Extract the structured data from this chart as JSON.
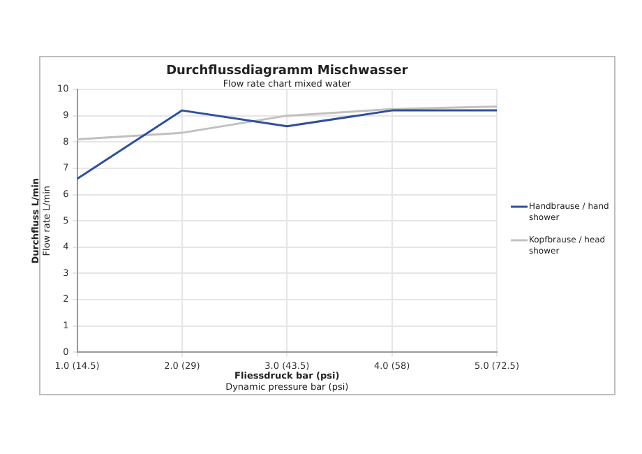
{
  "chart_data": {
    "type": "line",
    "title": "Durchflussdiagramm Mischwasser",
    "subtitle": "Flow rate chart mixed water",
    "xlabel": "Fliessdruck bar (psi)\nDynamic pressure bar (psi)",
    "ylabel": "Durchfluss L/min\nFlow rate L/min",
    "categories": [
      "1.0 (14.5)",
      "2.0 (29)",
      "3.0 (43.5)",
      "4.0 (58)",
      "5.0 (72.5)"
    ],
    "series": [
      {
        "name": "Handbrause / hand shower",
        "color": "#2e4f9e",
        "values": [
          6.6,
          9.2,
          8.6,
          9.2,
          9.2
        ]
      },
      {
        "name": "Kopfbrause / head shower",
        "color": "#c0c0c0",
        "values": [
          8.1,
          8.35,
          9.0,
          9.25,
          9.35
        ]
      }
    ],
    "ylim": [
      0,
      10
    ],
    "yticks": [
      0,
      1,
      2,
      3,
      4,
      5,
      6,
      7,
      8,
      9,
      10
    ],
    "grid": true,
    "legend": "right",
    "marker": "none",
    "line_style": "solid"
  }
}
